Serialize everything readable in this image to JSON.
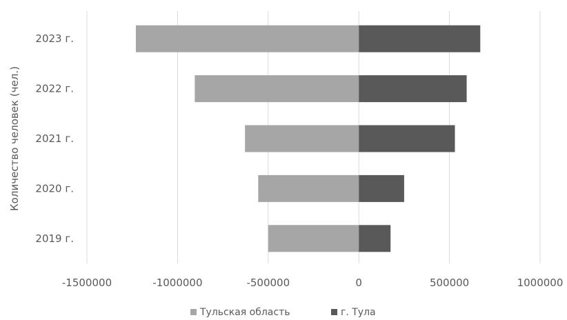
{
  "chart_data": {
    "type": "bar",
    "orientation": "horizontal",
    "stacked": "diverging",
    "title": "",
    "ylabel": "Количество человек (чел.)",
    "xlabel": "",
    "categories": [
      "2019 г.",
      "2020 г.",
      "2021 г.",
      "2022 г.",
      "2023 г."
    ],
    "series": [
      {
        "name": "Тульская область",
        "color": "#a6a6a6",
        "values": [
          -500000,
          -555000,
          -628000,
          -905000,
          -1230000
        ]
      },
      {
        "name": "г. Тула",
        "color": "#595959",
        "values": [
          175000,
          250000,
          530000,
          595000,
          670000
        ]
      }
    ],
    "xlim": [
      -1500000,
      1000000
    ],
    "xticks": [
      -1500000,
      -1000000,
      -500000,
      0,
      500000,
      1000000
    ],
    "xtick_labels": [
      "-1500000",
      "-1000000",
      "-500000",
      "0",
      "500000",
      "1000000"
    ],
    "grid": "vertical",
    "legend": "bottom"
  }
}
